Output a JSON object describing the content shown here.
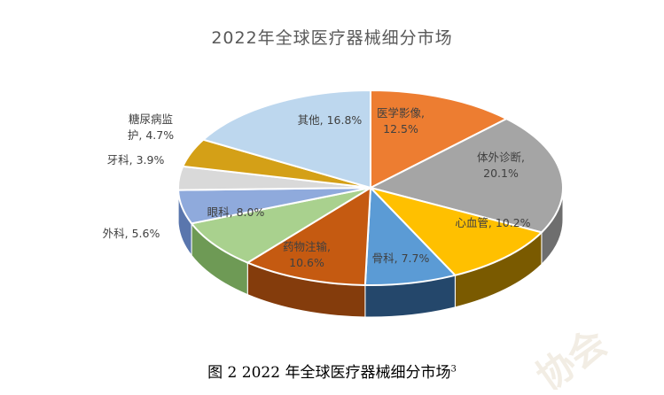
{
  "chart_data": {
    "type": "pie",
    "title": "2022年全球医疗器械细分市场",
    "slices": [
      {
        "label": "医学影像",
        "value": 12.5,
        "display": "医学影像,\n12.5%",
        "color": "#ED7D31",
        "side": "#A8521E"
      },
      {
        "label": "体外诊断",
        "value": 20.1,
        "display": "体外诊断,\n20.1%",
        "color": "#A5A5A5",
        "side": "#6E6E6E"
      },
      {
        "label": "心血管",
        "value": 10.2,
        "display": "心血管, 10.2%",
        "color": "#FFC000",
        "side": "#7A5A00"
      },
      {
        "label": "骨科",
        "value": 7.7,
        "display": "骨科, 7.7%",
        "color": "#5B9BD5",
        "side": "#24476B"
      },
      {
        "label": "药物注输",
        "value": 10.6,
        "display": "药物注输,\n10.6%",
        "color": "#C55A11",
        "side": "#843C0C"
      },
      {
        "label": "眼科",
        "value": 8.0,
        "display": "眼科, 8.0%",
        "color": "#A9D18E",
        "side": "#6E9A55"
      },
      {
        "label": "外科",
        "value": 5.6,
        "display": "外科, 5.6%",
        "color": "#8FAADC",
        "side": "#5A76AD"
      },
      {
        "label": "牙科",
        "value": 3.9,
        "display": "牙科, 3.9%",
        "color": "#D9D9D9",
        "side": "#A6A6A6"
      },
      {
        "label": "糖尿病监护",
        "value": 4.7,
        "display": "糖尿病监\n护, 4.7%",
        "color": "#D4A017",
        "side": "#8C6B0E"
      },
      {
        "label": "其他",
        "value": 16.8,
        "display": "其他, 16.8%",
        "color": "#BDD7EE",
        "side": "#8EA9C1"
      }
    ]
  },
  "caption": {
    "text": "图 2 2022 年全球医疗器械细分市场",
    "sup": "3"
  }
}
